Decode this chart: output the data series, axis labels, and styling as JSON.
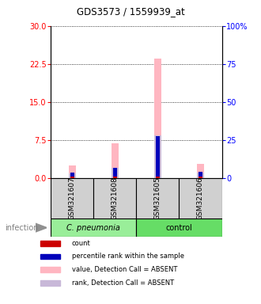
{
  "title": "GDS3573 / 1559939_at",
  "samples": [
    "GSM321607",
    "GSM321608",
    "GSM321605",
    "GSM321606"
  ],
  "value_absent": [
    2.5,
    6.8,
    23.5,
    2.8
  ],
  "rank_absent_pct": [
    3.0,
    6.5,
    28.0,
    3.3
  ],
  "count_red": [
    0.3,
    0.3,
    0.3,
    0.3
  ],
  "rank_blue_pct": [
    2.5,
    5.8,
    26.5,
    2.8
  ],
  "ylim_left": [
    0,
    30
  ],
  "ylim_right": [
    0,
    100
  ],
  "yticks_left": [
    0,
    7.5,
    15,
    22.5,
    30
  ],
  "yticks_right": [
    0,
    25,
    50,
    75,
    100
  ],
  "color_value_absent": "#FFB6C1",
  "color_rank_absent": "#C8B8D8",
  "color_count": "#CC0000",
  "color_rank": "#0000BB",
  "legend_items": [
    {
      "color": "#CC0000",
      "label": "count"
    },
    {
      "color": "#0000BB",
      "label": "percentile rank within the sample"
    },
    {
      "color": "#FFB6C1",
      "label": "value, Detection Call = ABSENT"
    },
    {
      "color": "#C8B8D8",
      "label": "rank, Detection Call = ABSENT"
    }
  ],
  "cpneumonia_color": "#99EE99",
  "control_color": "#66DD66",
  "sample_box_color": "#D0D0D0"
}
